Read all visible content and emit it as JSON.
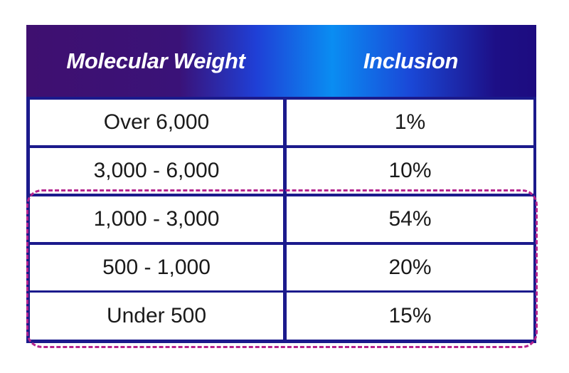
{
  "header": {
    "col1": "Molecular Weight",
    "col2": "Inclusion"
  },
  "rows": [
    {
      "weight": "Over 6,000",
      "inclusion": "1%"
    },
    {
      "weight": "3,000 - 6,000",
      "inclusion": "10%"
    },
    {
      "weight": "1,000 - 3,000",
      "inclusion": "54%"
    },
    {
      "weight": "500 - 1,000",
      "inclusion": "20%"
    },
    {
      "weight": "Under 500",
      "inclusion": "15%"
    }
  ],
  "colors": {
    "border": "#1b1a8c",
    "highlight": "#b5248e",
    "header_gradient": [
      "#3f1070",
      "#0a8df2",
      "#1d0c80"
    ]
  }
}
